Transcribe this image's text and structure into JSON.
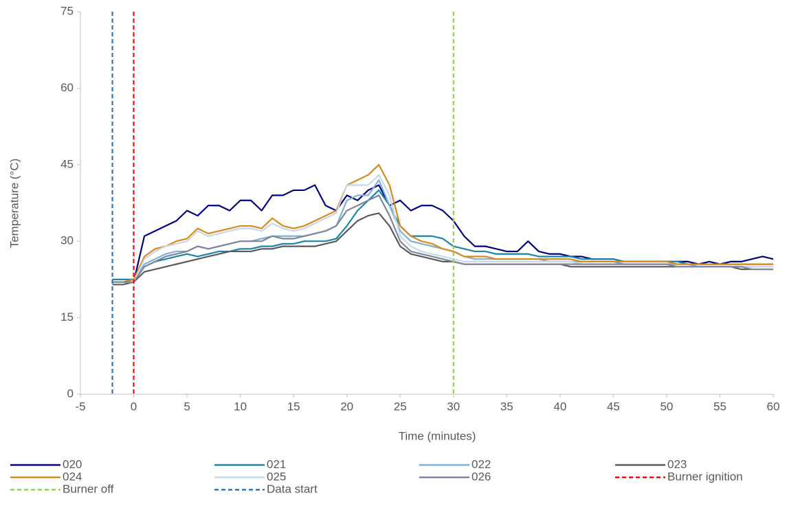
{
  "chart_data": {
    "type": "line",
    "xlabel": "Time (minutes)",
    "ylabel": "Temperature (°C)",
    "xlim": [
      -5,
      60
    ],
    "xticks": [
      -5,
      0,
      5,
      10,
      15,
      20,
      25,
      30,
      35,
      40,
      45,
      50,
      55,
      60
    ],
    "ylim": [
      0,
      75
    ],
    "yticks": [
      0,
      15,
      30,
      45,
      60,
      75
    ],
    "x": [
      -2,
      -1,
      0,
      1,
      2,
      3,
      4,
      5,
      6,
      7,
      8,
      9,
      10,
      11,
      12,
      13,
      14,
      15,
      16,
      17,
      18,
      19,
      20,
      21,
      22,
      23,
      24,
      25,
      26,
      27,
      28,
      29,
      30,
      31,
      32,
      33,
      34,
      35,
      36,
      37,
      38,
      39,
      40,
      41,
      42,
      43,
      44,
      45,
      46,
      47,
      48,
      49,
      50,
      51,
      52,
      53,
      54,
      55,
      56,
      57,
      58,
      59,
      60
    ],
    "series": [
      {
        "name": "020",
        "color": "#000080",
        "values": [
          22,
          22,
          22,
          31,
          32,
          33,
          34,
          36,
          35,
          37,
          37,
          36,
          38,
          38,
          36,
          39,
          39,
          40,
          40,
          41,
          37,
          36,
          39,
          38,
          40,
          41,
          37,
          38,
          36,
          37,
          37,
          36,
          34,
          31,
          29,
          29,
          28.5,
          28,
          28,
          30,
          28,
          27.5,
          27.5,
          27,
          27,
          26.5,
          26.5,
          26.5,
          26,
          26,
          26,
          26,
          26,
          26,
          26,
          25.5,
          26,
          25.5,
          26,
          26,
          26.5,
          27,
          26.5
        ]
      },
      {
        "name": "021",
        "color": "#1a85a8",
        "values": [
          22.5,
          22.5,
          22.5,
          25,
          26,
          26.5,
          27,
          27.5,
          27,
          27.5,
          28,
          28,
          28.5,
          28.5,
          29,
          29,
          29.5,
          29.5,
          30,
          30,
          30,
          30.5,
          33,
          36,
          38,
          40,
          37,
          33,
          31,
          31,
          31,
          30.5,
          29,
          28.5,
          28,
          28,
          27.5,
          27.5,
          27.5,
          27.5,
          27,
          27,
          27,
          27,
          26.5,
          26.5,
          26.5,
          26.5,
          26,
          26,
          26,
          26,
          26,
          26,
          25.5,
          25.5,
          25.5,
          25.5,
          25.5,
          25.5,
          25.5,
          25.5,
          25.5
        ]
      },
      {
        "name": "022",
        "color": "#7fb0d6",
        "values": [
          22,
          22,
          22,
          25.5,
          26.5,
          27.5,
          28,
          28,
          29,
          28.5,
          29,
          29.5,
          30,
          30,
          30.5,
          31,
          31,
          31,
          31,
          31.5,
          32,
          33,
          38,
          39,
          39,
          42,
          37,
          32,
          30,
          29.5,
          29,
          28.5,
          28,
          27,
          26.5,
          26.5,
          26.5,
          26.5,
          26.5,
          26.5,
          26.5,
          26,
          26,
          26,
          26,
          26,
          26,
          26,
          25.5,
          25.5,
          25.5,
          25.5,
          25.5,
          25.5,
          25.5,
          25,
          25,
          25,
          25,
          25,
          25,
          25,
          25
        ]
      },
      {
        "name": "023",
        "color": "#595959",
        "values": [
          21.5,
          21.5,
          22,
          24,
          24.5,
          25,
          25.5,
          26,
          26.5,
          27,
          27.5,
          28,
          28,
          28,
          28.5,
          28.5,
          29,
          29,
          29,
          29,
          29.5,
          30,
          32,
          34,
          35,
          35.5,
          33,
          29,
          27.5,
          27,
          26.5,
          26,
          26,
          25.5,
          25.5,
          25.5,
          25.5,
          25.5,
          25.5,
          25.5,
          25.5,
          25.5,
          25.5,
          25,
          25,
          25,
          25,
          25,
          25,
          25,
          25,
          25,
          25,
          25,
          25,
          25,
          25,
          25,
          25,
          24.5,
          24.5,
          24.5,
          24.5
        ]
      },
      {
        "name": "024",
        "color": "#d9891b",
        "values": [
          22,
          22,
          22.5,
          27,
          28.5,
          29,
          30,
          30.5,
          32.5,
          31.5,
          32,
          32.5,
          33,
          33,
          32.5,
          34.5,
          33,
          32.5,
          33,
          34,
          35,
          36,
          41,
          42,
          43,
          45,
          41,
          33,
          31,
          30,
          29.5,
          28.5,
          28,
          27,
          27,
          27,
          26.5,
          26.5,
          26.5,
          26.5,
          26.5,
          26.5,
          26.5,
          26.5,
          26,
          26,
          26,
          26,
          26,
          26,
          26,
          26,
          26,
          25.5,
          25.5,
          25.5,
          25.5,
          25.5,
          25.5,
          25.5,
          25.5,
          25.5,
          25.5
        ]
      },
      {
        "name": "025",
        "color": "#c5d9ea",
        "values": [
          22,
          22,
          22,
          26.5,
          28,
          29,
          29.5,
          30,
          32,
          31,
          31.5,
          32,
          32.5,
          32.5,
          32,
          33.5,
          32.5,
          32,
          32.5,
          33.5,
          34.5,
          35.5,
          41,
          41,
          41,
          43,
          39,
          31,
          29,
          28,
          27.5,
          27,
          26.5,
          26,
          26,
          26,
          26,
          26,
          26,
          26,
          26,
          26,
          26,
          26,
          25.5,
          25.5,
          25.5,
          25.5,
          25.5,
          25.5,
          25.5,
          25.5,
          25.5,
          25,
          25,
          25,
          25,
          25,
          25,
          25,
          25,
          25,
          25
        ]
      },
      {
        "name": "026",
        "color": "#7f8699",
        "values": [
          22,
          22,
          22,
          25,
          26,
          27,
          27.5,
          28,
          29,
          28.5,
          29,
          29.5,
          30,
          30,
          30,
          31,
          30.5,
          30.5,
          31,
          31.5,
          32,
          33,
          36,
          37,
          38,
          39,
          35,
          30,
          28,
          27.5,
          27,
          26.5,
          26,
          25.5,
          25.5,
          25.5,
          25.5,
          25.5,
          25.5,
          25.5,
          25.5,
          25.5,
          25.5,
          25.5,
          25.5,
          25.5,
          25.5,
          25.5,
          25.5,
          25.5,
          25.5,
          25.5,
          25.5,
          25,
          25,
          25,
          25,
          25,
          25,
          25,
          24.5,
          24.5,
          24.5
        ]
      }
    ],
    "markers": [
      {
        "name": "Burner ignition",
        "color": "#ff0000",
        "x": 0
      },
      {
        "name": "Burner off",
        "color": "#92d050",
        "x": 30
      },
      {
        "name": "Data start",
        "color": "#2e75b6",
        "x": -2
      }
    ]
  }
}
